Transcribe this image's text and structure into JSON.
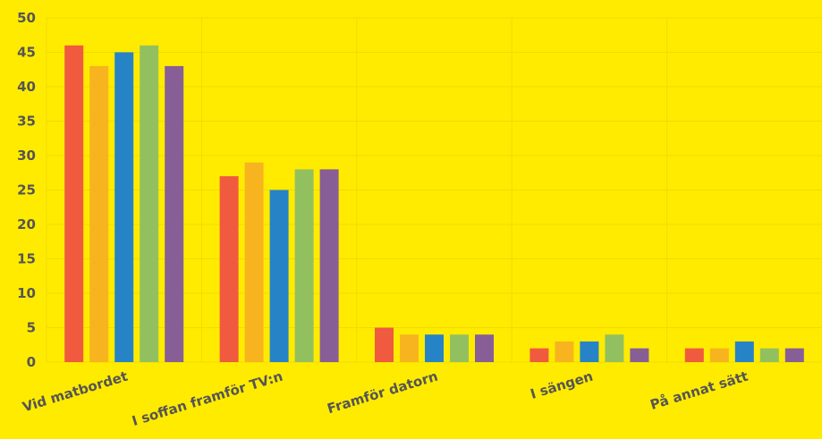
{
  "chart_data": {
    "type": "bar",
    "title": "",
    "xlabel": "",
    "ylabel": "",
    "categories": [
      "Vid matbordet",
      "I soffan framför TV:n",
      "Framför datorn",
      "I sängen",
      "På annat sätt"
    ],
    "series": [
      {
        "values": [
          46,
          27,
          5,
          2,
          2
        ],
        "color": "#F05A3E"
      },
      {
        "values": [
          43,
          29,
          4,
          3,
          2
        ],
        "color": "#F7B41E"
      },
      {
        "values": [
          45,
          25,
          4,
          3,
          3
        ],
        "color": "#2683C6"
      },
      {
        "values": [
          46,
          28,
          4,
          4,
          2
        ],
        "color": "#93C05F"
      },
      {
        "values": [
          43,
          28,
          4,
          2,
          2
        ],
        "color": "#875E96"
      }
    ],
    "ylim": [
      0,
      50
    ],
    "yticks": [
      0,
      5,
      10,
      15,
      20,
      25,
      30,
      35,
      40,
      45,
      50
    ],
    "grid": true,
    "legend": "none"
  },
  "colors": {
    "background": "#FFEB00",
    "grid": "#EFDC00",
    "text": "#555555"
  }
}
